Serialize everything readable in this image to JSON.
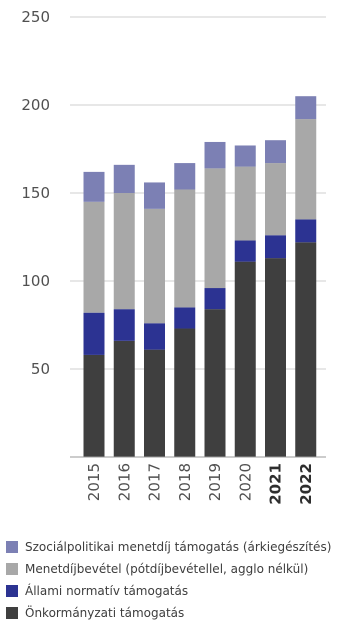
{
  "chart_data": {
    "type": "bar",
    "stacked": true,
    "categories": [
      "2015",
      "2016",
      "2017",
      "2018",
      "2019",
      "2020",
      "2021",
      "2022"
    ],
    "bold_categories": [
      "2021",
      "2022"
    ],
    "ylim": [
      0,
      250
    ],
    "yticks": [
      50,
      100,
      150,
      200,
      250
    ],
    "grid": true,
    "legend_position": "bottom",
    "series": [
      {
        "name": "Önkormányzati támogatás",
        "color": "#3f3f3f",
        "values": [
          58,
          66,
          61,
          73,
          84,
          111,
          113,
          122
        ]
      },
      {
        "name": "Állami normatív támogatás",
        "color": "#2c3392",
        "values": [
          24,
          18,
          15,
          12,
          12,
          12,
          13,
          13
        ]
      },
      {
        "name": "Menetdíjbevétel (pótdíjbevétellel, agglo nélkül)",
        "color": "#a8a8a8",
        "values": [
          63,
          66,
          65,
          67,
          68,
          42,
          41,
          57
        ]
      },
      {
        "name": "Szociálpolitikai menetdíj támogatás (árkiegészítés)",
        "color": "#7c80b4",
        "values": [
          17,
          16,
          15,
          15,
          15,
          12,
          13,
          13
        ]
      }
    ]
  },
  "legend": {
    "items": [
      {
        "label": "Szociálpolitikai menetdíj támogatás (árkiegészítés)",
        "color": "#7c80b4"
      },
      {
        "label": "Menetdíjbevétel (pótdíjbevétellel, agglo nélkül)",
        "color": "#a8a8a8"
      },
      {
        "label": "Állami normatív támogatás",
        "color": "#2c3392"
      },
      {
        "label": "Önkormányzati támogatás",
        "color": "#3f3f3f"
      }
    ]
  }
}
